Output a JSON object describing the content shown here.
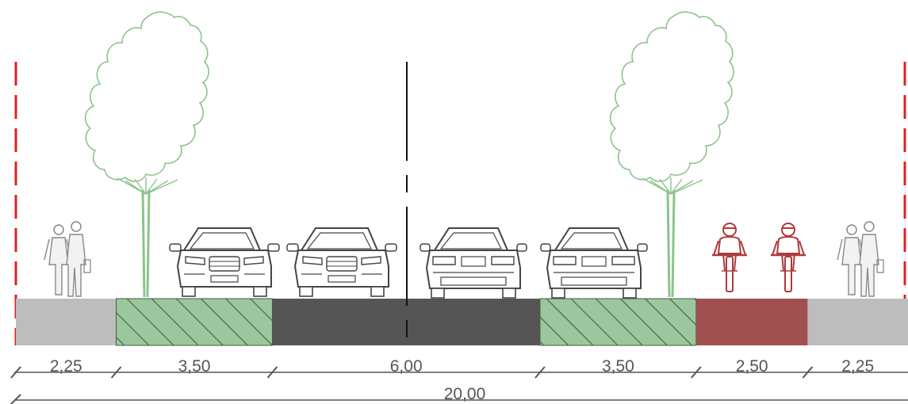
{
  "segments": [
    {
      "id": "sidewalk-left",
      "type": "sidewalk",
      "width_m": "2,25",
      "color": "#bdbdbd"
    },
    {
      "id": "parking-left",
      "type": "parking",
      "width_m": "3,50",
      "color": "#9cc79e",
      "hatched": true
    },
    {
      "id": "roadway",
      "type": "roadway",
      "width_m": "6,00",
      "color": "#555555"
    },
    {
      "id": "parking-right",
      "type": "parking",
      "width_m": "3,50",
      "color": "#9cc79e",
      "hatched": true
    },
    {
      "id": "bike-lane",
      "type": "bike-lane",
      "width_m": "2,50",
      "color": "#a05050"
    },
    {
      "id": "sidewalk-right",
      "type": "sidewalk",
      "width_m": "2,25",
      "color": "#bdbdbd"
    }
  ],
  "total_width": "20,00",
  "colors": {
    "boundary": "#e0201f",
    "tree": "#8bc48c",
    "cyclist": "#b03a3a",
    "vehicle": "#444444",
    "pedestrian": "#888888",
    "dimension": "#555555"
  },
  "icons": [
    "tree-icon",
    "car-front-icon",
    "car-rear-icon",
    "bicycle-icon",
    "pedestrians-icon"
  ]
}
